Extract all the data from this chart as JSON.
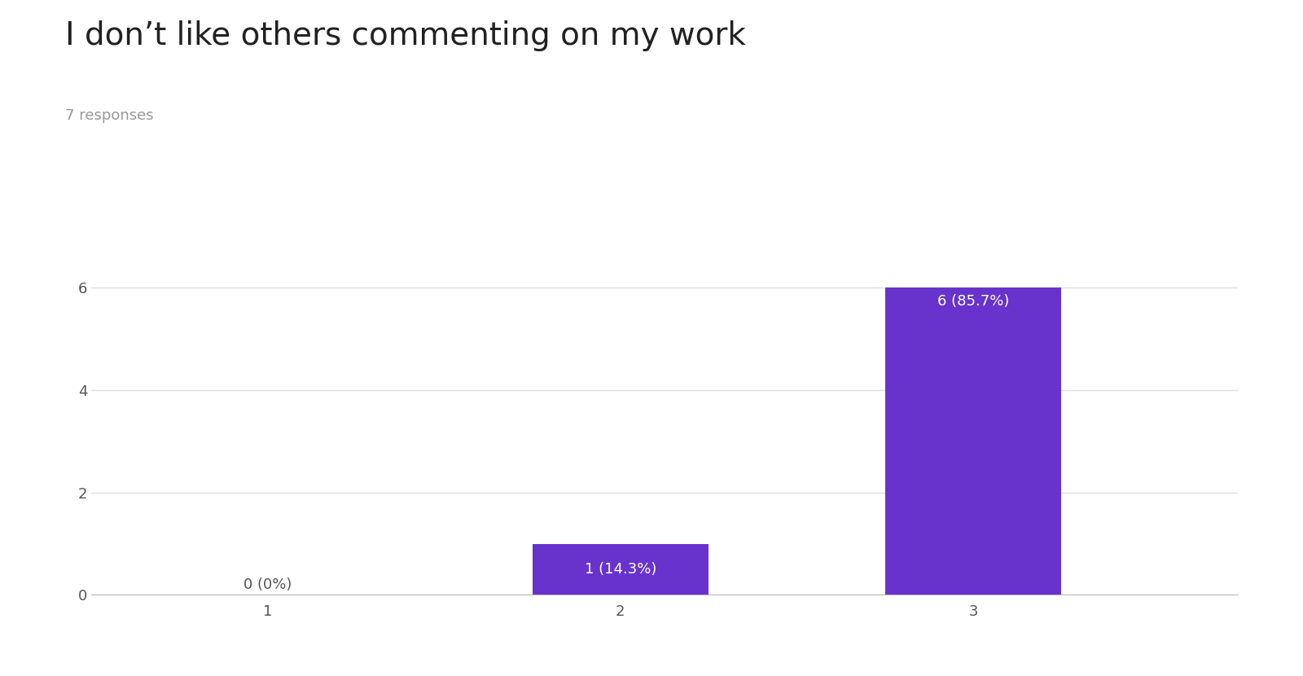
{
  "title": "I don’t like others commenting on my work",
  "subtitle": "7 responses",
  "categories": [
    1,
    2,
    3
  ],
  "values": [
    0,
    1,
    6
  ],
  "labels": [
    "0 (0%)",
    "1 (14.3%)",
    "6 (85.7%)"
  ],
  "bar_color": "#6733cc",
  "label_color_inside": "#ffffff",
  "label_color_outside": "#555555",
  "ylim": [
    0,
    6.6
  ],
  "yticks": [
    0,
    2,
    4,
    6
  ],
  "background_color": "#ffffff",
  "title_fontsize": 28,
  "subtitle_fontsize": 13,
  "subtitle_color": "#999999",
  "tick_fontsize": 13,
  "label_fontsize": 13,
  "bar_width": 0.5,
  "grid_color": "#e0e0e0"
}
